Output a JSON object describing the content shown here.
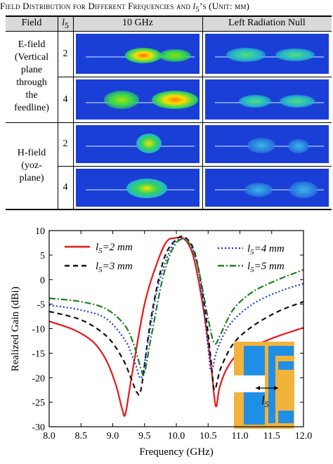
{
  "caption": {
    "lead": "Field Distribution for Different Frequencies and ",
    "var": "l",
    "sub": "5",
    "tail": "’s (Unit: mm)"
  },
  "table": {
    "headers": {
      "field": "Field",
      "l5_var": "l",
      "l5_sub": "5",
      "col1": "10 GHz",
      "col2": "Left Radiation Null"
    },
    "groups": [
      {
        "label": "E-field\n(Vertical\nplane\nthrough\nthe\nfeedline)",
        "rows": [
          {
            "l5": "2"
          },
          {
            "l5": "4"
          }
        ]
      },
      {
        "label": "H-field\n(yoz-\nplane)",
        "rows": [
          {
            "l5": "2"
          },
          {
            "l5": "4"
          }
        ]
      }
    ]
  },
  "chart_data": {
    "type": "line",
    "xlabel": "Frequency (GHz)",
    "ylabel": "Realized Gain (dBi)",
    "xlim": [
      8.0,
      12.0
    ],
    "ylim": [
      -30,
      10
    ],
    "xticks": [
      "8.0",
      "8.5",
      "9.0",
      "9.5",
      "10.0",
      "10.5",
      "11.0",
      "11.5",
      "12.0"
    ],
    "yticks": [
      "10",
      "5",
      "0",
      "-5",
      "-10",
      "-15",
      "-20",
      "-25",
      "-30"
    ],
    "grid": false,
    "series": [
      {
        "name": "l5=2 mm",
        "color": "#e8171c",
        "dash": "solid",
        "x": [
          8.0,
          8.4,
          8.7,
          8.9,
          9.05,
          9.15,
          9.2,
          9.3,
          9.5,
          9.7,
          9.85,
          10.0,
          10.1,
          10.2,
          10.3,
          10.45,
          10.55,
          10.62,
          10.68,
          10.8,
          11.0,
          11.5,
          12.0
        ],
        "y": [
          -8.5,
          -10.3,
          -12.8,
          -16.5,
          -21.5,
          -26.5,
          -27.3,
          -19.5,
          -5.0,
          3.5,
          7.8,
          8.5,
          8.5,
          7.0,
          3.0,
          -8.0,
          -18.0,
          -25.8,
          -22.0,
          -18.0,
          -15.0,
          -12.0,
          -9.8
        ]
      },
      {
        "name": "l5=3 mm",
        "color": "#111111",
        "dash": "dashed",
        "x": [
          8.0,
          8.5,
          8.9,
          9.15,
          9.3,
          9.38,
          9.45,
          9.6,
          9.8,
          10.0,
          10.15,
          10.3,
          10.45,
          10.55,
          10.6,
          10.7,
          10.9,
          11.2,
          11.6,
          12.0
        ],
        "y": [
          -6.5,
          -8.2,
          -11.5,
          -16.0,
          -20.5,
          -23.0,
          -22.0,
          -8.0,
          4.0,
          8.2,
          8.5,
          5.0,
          -6.0,
          -17.0,
          -22.5,
          -18.0,
          -13.0,
          -9.5,
          -6.5,
          -4.5
        ]
      },
      {
        "name": "l5=4 mm",
        "color": "#1d3bd9",
        "dash": "dotted",
        "x": [
          8.0,
          8.5,
          8.9,
          9.2,
          9.35,
          9.45,
          9.55,
          9.7,
          9.9,
          10.05,
          10.2,
          10.35,
          10.5,
          10.55,
          10.65,
          10.85,
          11.2,
          11.6,
          12.0
        ],
        "y": [
          -5.2,
          -6.2,
          -8.0,
          -12.5,
          -17.0,
          -20.0,
          -13.0,
          -2.0,
          6.0,
          8.2,
          7.5,
          2.0,
          -14.0,
          -18.5,
          -14.0,
          -9.0,
          -5.0,
          -2.5,
          -0.8
        ]
      },
      {
        "name": "l5=5 mm",
        "color": "#1e7d1e",
        "dash": "dashdot",
        "x": [
          8.0,
          8.5,
          8.9,
          9.2,
          9.35,
          9.45,
          9.5,
          9.6,
          9.8,
          10.0,
          10.2,
          10.35,
          10.5,
          10.6,
          10.7,
          10.9,
          11.2,
          11.6,
          12.0
        ],
        "y": [
          -3.8,
          -4.5,
          -6.0,
          -9.5,
          -14.0,
          -18.5,
          -19.0,
          -12.0,
          1.0,
          7.5,
          7.5,
          2.0,
          -8.0,
          -13.0,
          -11.0,
          -6.0,
          -2.5,
          0.0,
          2.0
        ]
      }
    ],
    "legend": [
      {
        "var": "l",
        "sub": "5",
        "eq": "=2 mm"
      },
      {
        "var": "l",
        "sub": "5",
        "eq": "=3 mm"
      },
      {
        "var": "l",
        "sub": "5",
        "eq": "=4 mm"
      },
      {
        "var": "l",
        "sub": "5",
        "eq": "=5 mm"
      }
    ],
    "inset": {
      "var": "l",
      "sub": "5",
      "colors": {
        "substrate": "#f2b33d",
        "metal": "#1f8fe6"
      }
    }
  },
  "colors": {
    "field_bg": "#1a3fd6",
    "header_bg": "#d9d9d9"
  }
}
